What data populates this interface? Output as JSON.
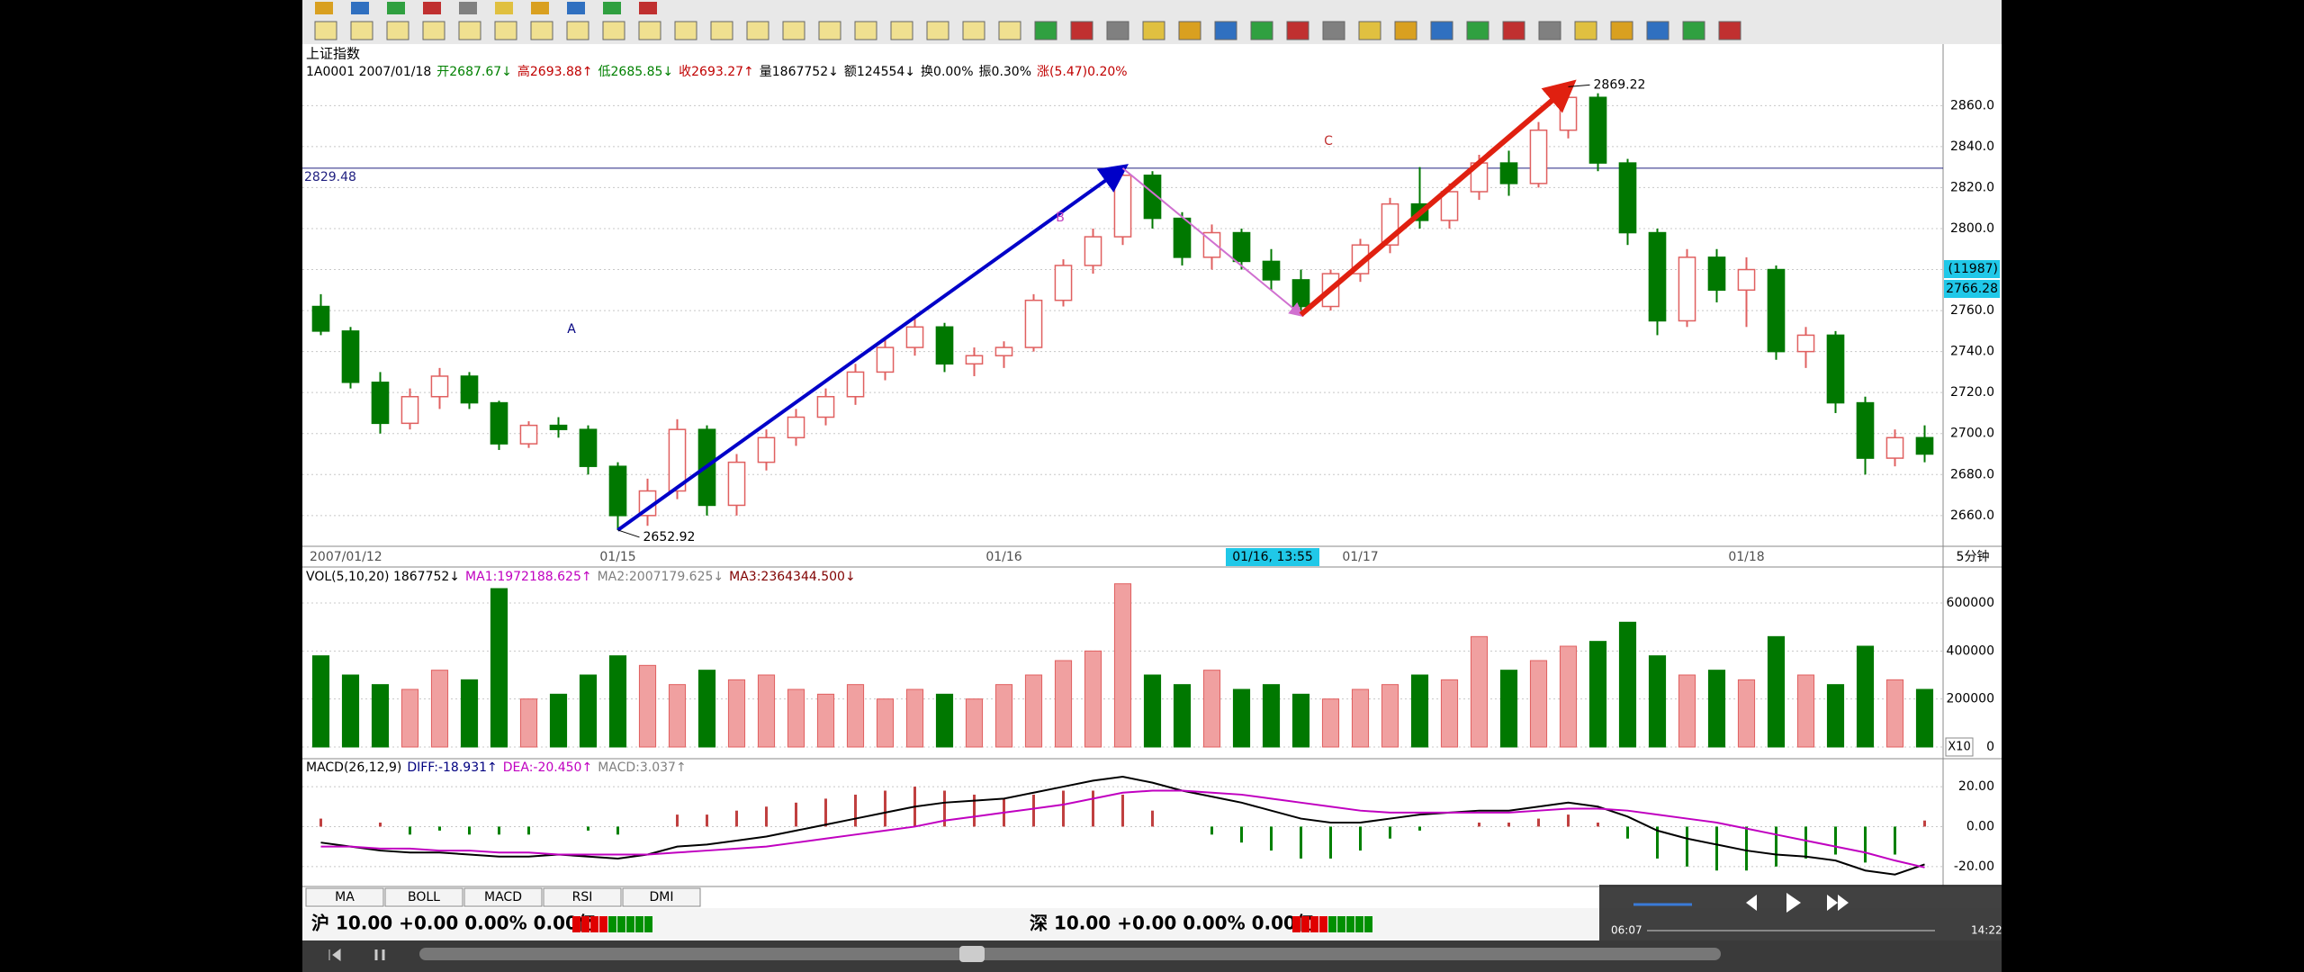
{
  "chart_data": [
    {
      "type": "candlestick",
      "title": "上证指数",
      "info": [
        {
          "text": "1A0001 2007/01/18",
          "color": "#000000"
        },
        {
          "text": "开2687.67↓",
          "color": "#008000"
        },
        {
          "text": "高2693.88↑",
          "color": "#c00000"
        },
        {
          "text": "低2685.85↓",
          "color": "#008000"
        },
        {
          "text": "收2693.27↑",
          "color": "#c00000"
        },
        {
          "text": "量1867752↓",
          "color": "#000000"
        },
        {
          "text": "额124554↓",
          "color": "#000000"
        },
        {
          "text": "换0.00%",
          "color": "#000000"
        },
        {
          "text": "振0.30%",
          "color": "#000000"
        },
        {
          "text": "涨(5.47)0.20%",
          "color": "#c00000"
        }
      ],
      "categories": [
        "2007/01/12",
        null,
        null,
        null,
        null,
        null,
        null,
        null,
        null,
        null,
        "01/15",
        null,
        null,
        null,
        null,
        null,
        null,
        null,
        null,
        null,
        null,
        null,
        null,
        "01/16",
        null,
        null,
        null,
        null,
        null,
        null,
        null,
        null,
        null,
        null,
        null,
        "01/17",
        null,
        null,
        null,
        null,
        null,
        null,
        null,
        null,
        null,
        null,
        null,
        null,
        "01/18",
        null,
        null,
        null,
        null,
        null,
        null
      ],
      "open": [
        2762,
        2750,
        2725,
        2705,
        2718,
        2728,
        2715,
        2695,
        2704,
        2702,
        2684,
        2660,
        2672,
        2702,
        2665,
        2686,
        2698,
        2708,
        2718,
        2730,
        2742,
        2752,
        2734,
        2738,
        2742,
        2765,
        2782,
        2796,
        2826,
        2805,
        2786,
        2798,
        2784,
        2775,
        2762,
        2778,
        2792,
        2812,
        2804,
        2818,
        2832,
        2822,
        2848,
        2864,
        2832,
        2798,
        2755,
        2786,
        2770,
        2780,
        2740,
        2748,
        2715,
        2688,
        2698
      ],
      "high": [
        2768,
        2752,
        2730,
        2722,
        2732,
        2730,
        2716,
        2706,
        2708,
        2704,
        2686,
        2678,
        2707,
        2704,
        2690,
        2702,
        2712,
        2722,
        2734,
        2746,
        2756,
        2754,
        2742,
        2745,
        2768,
        2785,
        2800,
        2829.48,
        2828,
        2808,
        2802,
        2800,
        2790,
        2780,
        2780,
        2795,
        2815,
        2830,
        2822,
        2836,
        2838,
        2852,
        2869.22,
        2866,
        2834,
        2800,
        2790,
        2790,
        2786,
        2782,
        2752,
        2750,
        2718,
        2702,
        2704
      ],
      "low": [
        2748,
        2722,
        2700,
        2702,
        2712,
        2712,
        2692,
        2693,
        2698,
        2680,
        2652.92,
        2655,
        2668,
        2660,
        2660,
        2682,
        2694,
        2704,
        2714,
        2726,
        2738,
        2730,
        2728,
        2732,
        2740,
        2762,
        2778,
        2792,
        2800,
        2782,
        2780,
        2780,
        2770,
        2758,
        2760,
        2774,
        2788,
        2800,
        2800,
        2814,
        2816,
        2820,
        2844,
        2828,
        2792,
        2748,
        2752,
        2764,
        2752,
        2736,
        2732,
        2710,
        2680,
        2684,
        2686
      ],
      "close": [
        2750,
        2725,
        2705,
        2718,
        2728,
        2715,
        2695,
        2704,
        2702,
        2684,
        2660,
        2672,
        2702,
        2665,
        2686,
        2698,
        2708,
        2718,
        2730,
        2742,
        2752,
        2734,
        2738,
        2742,
        2765,
        2782,
        2796,
        2826,
        2805,
        2786,
        2798,
        2784,
        2775,
        2762,
        2778,
        2792,
        2812,
        2804,
        2818,
        2832,
        2822,
        2848,
        2864,
        2832,
        2798,
        2755,
        2786,
        2770,
        2780,
        2740,
        2748,
        2715,
        2688,
        2698,
        2690
      ],
      "up_color": "#e06060",
      "down_color": "#007800",
      "ylim": [
        2645,
        2890
      ],
      "yticks": [
        {
          "value": 2660,
          "label": "2660.0"
        },
        {
          "value": 2680,
          "label": "2680.0"
        },
        {
          "value": 2700,
          "label": "2700.0"
        },
        {
          "value": 2720,
          "label": "2720.0"
        },
        {
          "value": 2740,
          "label": "2740.0"
        },
        {
          "value": 2760,
          "label": "2760.0"
        },
        {
          "value": 2780,
          "label": "2780.0"
        },
        {
          "value": 2800,
          "label": "2800.0"
        },
        {
          "value": 2820,
          "label": "2820.0"
        },
        {
          "value": 2840,
          "label": "2840.0"
        },
        {
          "value": 2860,
          "label": "2860.0"
        }
      ],
      "grid": true,
      "hline": 2829.48,
      "labels": [
        "A",
        "B",
        "C"
      ],
      "cursor_label": "01/16, 13:55",
      "cursor_values": [
        "(11987)",
        "2766.28"
      ],
      "period": "5分钟"
    },
    {
      "type": "bar",
      "info": [
        {
          "text": "VOL(5,10,20) 1867752↓",
          "color": "#000000"
        },
        {
          "text": "MA1:1972188.625↑",
          "color": "#c000c0"
        },
        {
          "text": "MA2:2007179.625↓",
          "color": "#808080"
        },
        {
          "text": "MA3:2364344.500↓",
          "color": "#800000"
        }
      ],
      "values": [
        380000,
        300000,
        260000,
        240000,
        320000,
        280000,
        660000,
        200000,
        220000,
        300000,
        380000,
        340000,
        260000,
        320000,
        280000,
        300000,
        240000,
        220000,
        260000,
        200000,
        240000,
        220000,
        200000,
        260000,
        300000,
        360000,
        400000,
        680000,
        300000,
        260000,
        320000,
        240000,
        260000,
        220000,
        200000,
        240000,
        260000,
        300000,
        280000,
        460000,
        320000,
        360000,
        420000,
        440000,
        520000,
        380000,
        300000,
        320000,
        280000,
        460000,
        300000,
        260000,
        420000,
        280000,
        240000
      ],
      "ylim": [
        0,
        750000
      ],
      "yticks": [
        0,
        200000,
        400000,
        600000
      ],
      "grid": true,
      "scale_label": "X10"
    },
    {
      "type": "macd",
      "info": [
        {
          "text": "MACD(26,12,9)",
          "color": "#000000"
        },
        {
          "text": "DIFF:-18.931↑",
          "color": "#000080"
        },
        {
          "text": "DEA:-20.450↑",
          "color": "#c000c0"
        },
        {
          "text": "MACD:3.037↑",
          "color": "#808080"
        }
      ],
      "series": [
        {
          "name": "DIFF",
          "color": "#000000",
          "values": [
            -8,
            -10,
            -12,
            -13,
            -13,
            -14,
            -15,
            -15,
            -14,
            -15,
            -16,
            -14,
            -10,
            -9,
            -7,
            -5,
            -2,
            1,
            4,
            7,
            10,
            12,
            13,
            14,
            17,
            20,
            23,
            25,
            22,
            18,
            15,
            12,
            8,
            4,
            2,
            2,
            4,
            6,
            7,
            8,
            8,
            10,
            12,
            10,
            5,
            -2,
            -6,
            -9,
            -12,
            -14,
            -15,
            -17,
            -22,
            -24,
            -18.931
          ]
        },
        {
          "name": "DEA",
          "color": "#c000c0",
          "values": [
            -10,
            -10,
            -11,
            -11,
            -12,
            -12,
            -13,
            -13,
            -14,
            -14,
            -14,
            -14,
            -13,
            -12,
            -11,
            -10,
            -8,
            -6,
            -4,
            -2,
            0,
            3,
            5,
            7,
            9,
            11,
            14,
            17,
            18,
            18,
            17,
            16,
            14,
            12,
            10,
            8,
            7,
            7,
            7,
            7,
            7,
            8,
            9,
            9,
            8,
            6,
            4,
            2,
            -1,
            -4,
            -7,
            -10,
            -13,
            -17,
            -20.45
          ]
        }
      ],
      "values": [
        4,
        0,
        2,
        -4,
        -2,
        -4,
        -4,
        -4,
        0,
        -2,
        -4,
        0,
        6,
        6,
        8,
        10,
        12,
        14,
        16,
        18,
        20,
        18,
        16,
        14,
        16,
        18,
        18,
        16,
        8,
        0,
        -4,
        -8,
        -12,
        -16,
        -16,
        -12,
        -6,
        -2,
        0,
        2,
        2,
        4,
        6,
        2,
        -6,
        -16,
        -20,
        -22,
        -22,
        -20,
        -16,
        -14,
        -18,
        -14,
        3.037
      ],
      "up_color": "#c04040",
      "down_color": "#008000",
      "ylim": [
        -30,
        34
      ],
      "yticks": [
        {
          "value": 20,
          "label": "20.00"
        },
        {
          "value": 0,
          "label": "0.00"
        },
        {
          "value": -20,
          "label": "-20.00"
        }
      ],
      "grid": true
    }
  ],
  "tabs": [
    "MA",
    "BOLL",
    "MACD",
    "RSI",
    "DMI"
  ],
  "status": {
    "sh": "沪 10.00 +0.00 0.00% 0.00亿",
    "sz": "深 10.00 +0.00 0.00% 0.00亿"
  },
  "player": {
    "elapsed": "06:07",
    "total": "14:22"
  }
}
